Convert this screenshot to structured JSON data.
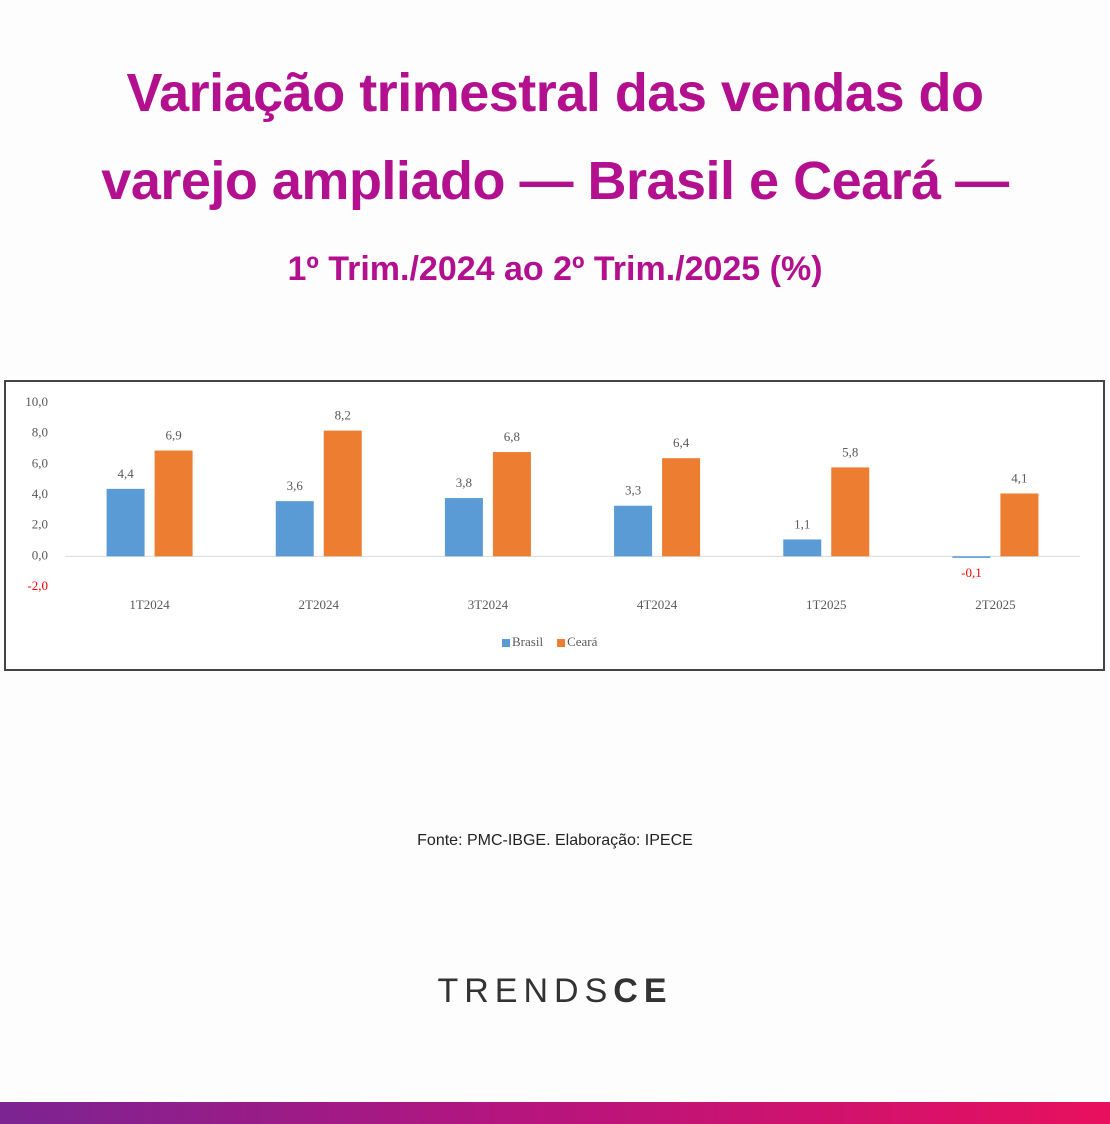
{
  "chart_data": {
    "type": "bar",
    "title": [
      "Variação trimestral das vendas do",
      "varejo ampliado — Brasil e Ceará —"
    ],
    "subtitle": "1º Trim./2024 ao 2º Trim./2025 (%)",
    "categories": [
      "1T2024",
      "2T2024",
      "3T2024",
      "4T2024",
      "1T2025",
      "2T2025"
    ],
    "series": [
      {
        "name": "Brasil",
        "color": "#5b9bd5",
        "values": [
          4.4,
          3.6,
          3.8,
          3.3,
          1.1,
          -0.1
        ],
        "value_labels": [
          "4,4",
          "3,6",
          "3,8",
          "3,3",
          "1,1",
          "-0,1"
        ]
      },
      {
        "name": "Ceará",
        "color": "#ed7d31",
        "values": [
          6.9,
          8.2,
          6.8,
          6.4,
          5.8,
          4.1
        ],
        "value_labels": [
          "6,9",
          "8,2",
          "6,8",
          "6,4",
          "5,8",
          "4,1"
        ]
      }
    ],
    "ylim": [
      -2,
      10
    ],
    "yticks": [
      {
        "value": -2,
        "label": "-2,0"
      },
      {
        "value": 0,
        "label": "0,0"
      },
      {
        "value": 2,
        "label": "2,0"
      },
      {
        "value": 4,
        "label": "4,0"
      },
      {
        "value": 6,
        "label": "6,0"
      },
      {
        "value": 8,
        "label": "8,0"
      },
      {
        "value": 10,
        "label": "10,0"
      }
    ],
    "negative_label_color": "#ff0000",
    "legend": "bottom",
    "source": "Fonte: PMC-IBGE. Elaboração: IPECE"
  },
  "logo": {
    "light": "TRENDS",
    "bold": "CE"
  }
}
